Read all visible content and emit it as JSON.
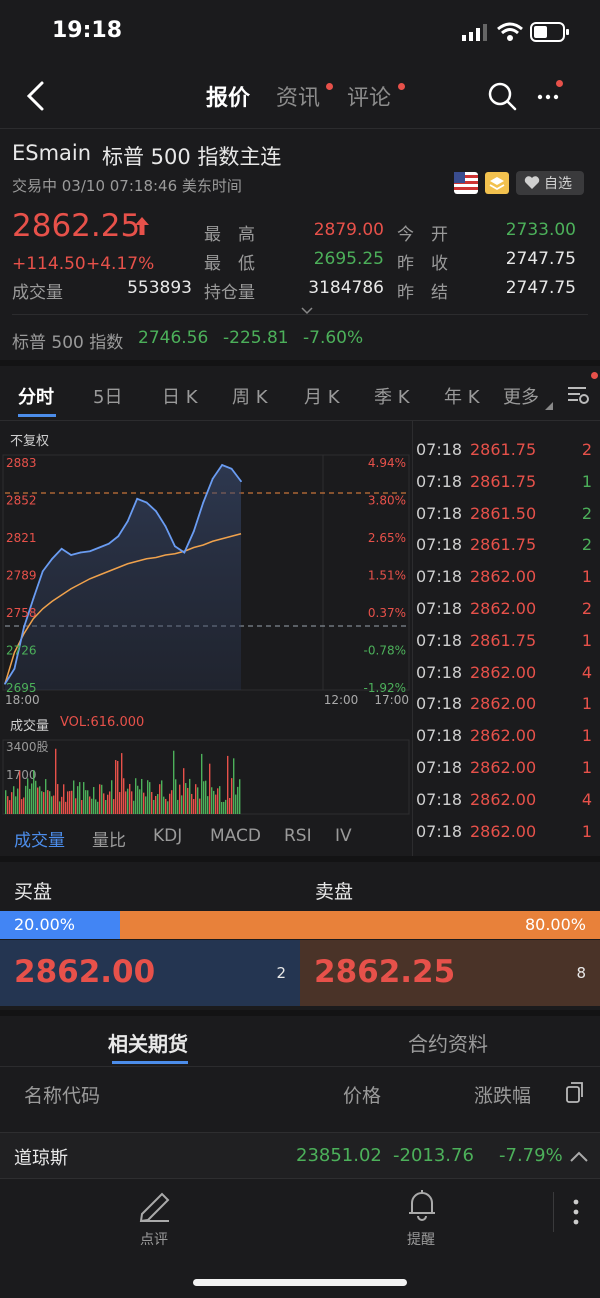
{
  "status_bar": {
    "time": "19:18"
  },
  "nav": {
    "tabs": [
      {
        "label": "报价",
        "active": true
      },
      {
        "label": "资讯",
        "dot": true
      },
      {
        "label": "评论",
        "dot": true
      }
    ]
  },
  "quote": {
    "symbol": "ESmain",
    "name": "标普 500 指数主连",
    "status": "交易中 03/10 07:18:46 美东时间",
    "watch_label": "自选",
    "price": "2862.25",
    "change": "+114.50",
    "change_pct": "+4.17%",
    "volume_label": "成交量",
    "volume": "553893",
    "oi_label": "持仓量",
    "oi": "3184786",
    "high_label": "最　高",
    "high": "2879.00",
    "low_label": "最　低",
    "low": "2695.25",
    "open_label": "今　开",
    "open": "2733.00",
    "prev_close_label": "昨　收",
    "prev_close": "2747.75",
    "prev_settle_label": "昨　结",
    "prev_settle": "2747.75"
  },
  "index": {
    "name": "标普 500 指数",
    "value": "2746.56",
    "change": "-225.81",
    "change_pct": "-7.60%"
  },
  "chart_tabs": [
    "分时",
    "5日",
    "日 K",
    "周 K",
    "月 K",
    "季 K",
    "年 K",
    "更多"
  ],
  "chart": {
    "adjust_label": "不复权",
    "y_labels": [
      "2883",
      "2852",
      "2821",
      "2789",
      "2758",
      "2726",
      "2695"
    ],
    "pct_labels": [
      "4.94%",
      "3.80%",
      "2.65%",
      "1.51%",
      "0.37%",
      "-0.78%",
      "-1.92%"
    ],
    "x_labels": [
      "18:00",
      "12:00",
      "17:00"
    ],
    "volume_title": "成交量",
    "vol_label": "VOL:616.000",
    "vol_max": "3400股",
    "vol_mid": "1700"
  },
  "chart_data": {
    "type": "line",
    "title": "",
    "xlabel": "",
    "ylabel": "",
    "ylim": [
      2695,
      2883
    ],
    "x_ticks": [
      "18:00",
      "12:00",
      "17:00"
    ],
    "series": [
      {
        "values": [
          2700,
          2712,
          2745,
          2768,
          2790,
          2800,
          2808,
          2803,
          2805,
          2806,
          2809,
          2812,
          2818,
          2830,
          2848,
          2845,
          2838,
          2826,
          2810,
          2805,
          2822,
          2845,
          2864,
          2875,
          2872,
          2862
        ]
      },
      {
        "values": [
          2700,
          2725,
          2740,
          2752,
          2760,
          2766,
          2771,
          2776,
          2780,
          2784,
          2787,
          2790,
          2793,
          2796,
          2798,
          2800,
          2801,
          2803,
          2804,
          2806,
          2809,
          2811,
          2814,
          2816,
          2818,
          2820
        ]
      }
    ]
  },
  "trades": [
    {
      "time": "07:18",
      "price": "2861.75",
      "qty": "2"
    },
    {
      "time": "07:18",
      "price": "2861.75",
      "qty": "1"
    },
    {
      "time": "07:18",
      "price": "2861.50",
      "qty": "2"
    },
    {
      "time": "07:18",
      "price": "2861.75",
      "qty": "2"
    },
    {
      "time": "07:18",
      "price": "2862.00",
      "qty": "1"
    },
    {
      "time": "07:18",
      "price": "2862.00",
      "qty": "2"
    },
    {
      "time": "07:18",
      "price": "2861.75",
      "qty": "1"
    },
    {
      "time": "07:18",
      "price": "2862.00",
      "qty": "4"
    },
    {
      "time": "07:18",
      "price": "2862.00",
      "qty": "1"
    },
    {
      "time": "07:18",
      "price": "2862.00",
      "qty": "1"
    },
    {
      "time": "07:18",
      "price": "2862.00",
      "qty": "1"
    },
    {
      "time": "07:18",
      "price": "2862.00",
      "qty": "4"
    },
    {
      "time": "07:18",
      "price": "2862.00",
      "qty": "1"
    }
  ],
  "indicator_tabs": [
    "成交量",
    "量比",
    "KDJ",
    "MACD",
    "RSI",
    "IV"
  ],
  "order_book": {
    "buy_label": "买盘",
    "sell_label": "卖盘",
    "buy_pct": "20.00%",
    "sell_pct": "80.00%",
    "buy_ratio": 0.2,
    "bid_price": "2862.00",
    "bid_qty": "2",
    "ask_price": "2862.25",
    "ask_qty": "8"
  },
  "related": {
    "tabs": [
      "相关期货",
      "合约资料"
    ],
    "col_name": "名称代码",
    "col_price": "价格",
    "col_change": "涨跌幅",
    "bottom_row": {
      "name": "道琼斯",
      "price": "23851.02",
      "change": "-2013.76",
      "pct": "-7.79%"
    }
  },
  "bottom_bar": {
    "comment_label": "点评",
    "alert_label": "提醒"
  },
  "colors": {
    "up": "#e7514a",
    "down": "#4cb05a",
    "accent": "#4c8dea",
    "sell": "#e8813a"
  }
}
